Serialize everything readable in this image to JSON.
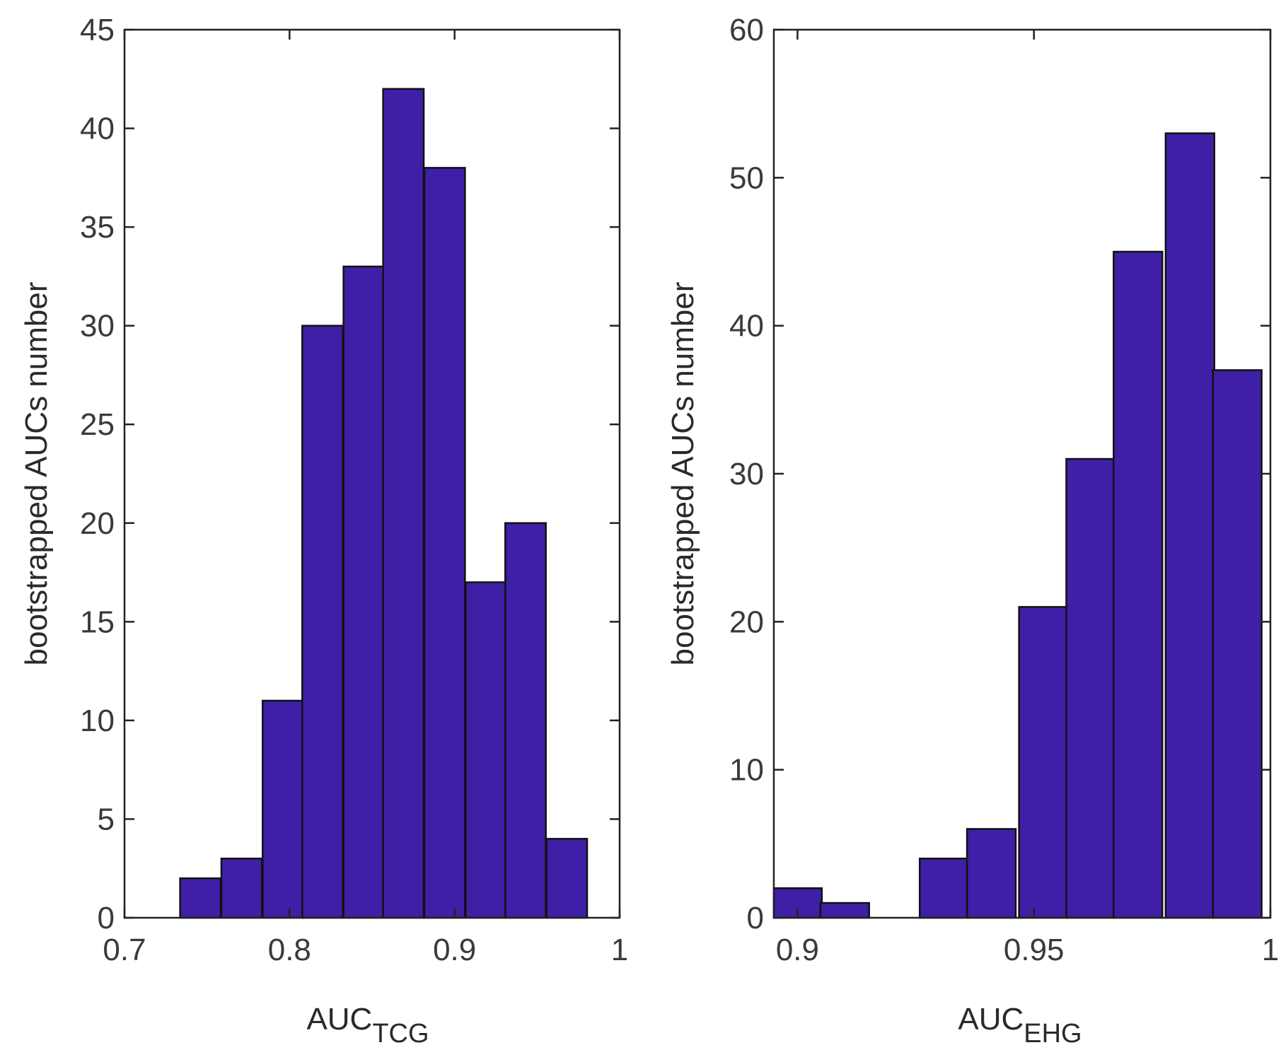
{
  "chart_data": [
    {
      "type": "bar",
      "title": "",
      "xlabel": "AUC",
      "xlabel_subscript": "TCG",
      "ylabel": "bootstrapped  AUCs number",
      "xlim": [
        0.7,
        1.0
      ],
      "ylim": [
        0,
        45
      ],
      "xticks": [
        0.7,
        0.8,
        0.9,
        1.0
      ],
      "xtick_labels": [
        "0.7",
        "0.8",
        "0.9",
        "1"
      ],
      "yticks": [
        0,
        5,
        10,
        15,
        20,
        25,
        30,
        35,
        40,
        45
      ],
      "ytick_labels": [
        "0",
        "5",
        "10",
        "15",
        "20",
        "25",
        "30",
        "35",
        "40",
        "45"
      ],
      "bin_width": 0.0246,
      "bin_centers": [
        0.746,
        0.771,
        0.796,
        0.82,
        0.845,
        0.869,
        0.894,
        0.919,
        0.943,
        0.968
      ],
      "values": [
        2,
        3,
        11,
        30,
        33,
        42,
        38,
        17,
        20,
        4
      ],
      "bar_color": "#3f1fa6"
    },
    {
      "type": "bar",
      "title": "",
      "xlabel": "AUC",
      "xlabel_subscript": "EHG",
      "ylabel": "bootstrapped  AUCs number",
      "xlim": [
        0.895,
        1.0
      ],
      "ylim": [
        0,
        60
      ],
      "xticks": [
        0.9,
        0.95,
        1.0
      ],
      "xtick_labels": [
        "0.9",
        "0.95",
        "1"
      ],
      "yticks": [
        0,
        10,
        20,
        30,
        40,
        50,
        60
      ],
      "ytick_labels": [
        "0",
        "10",
        "20",
        "30",
        "40",
        "50",
        "60"
      ],
      "bin_width": 0.0103,
      "bin_centers": [
        0.9,
        0.91,
        0.921,
        0.931,
        0.941,
        0.952,
        0.962,
        0.972,
        0.983,
        0.993
      ],
      "values": [
        2,
        1,
        0,
        4,
        6,
        21,
        31,
        45,
        53,
        37
      ],
      "bar_color": "#3f1fa6"
    }
  ]
}
